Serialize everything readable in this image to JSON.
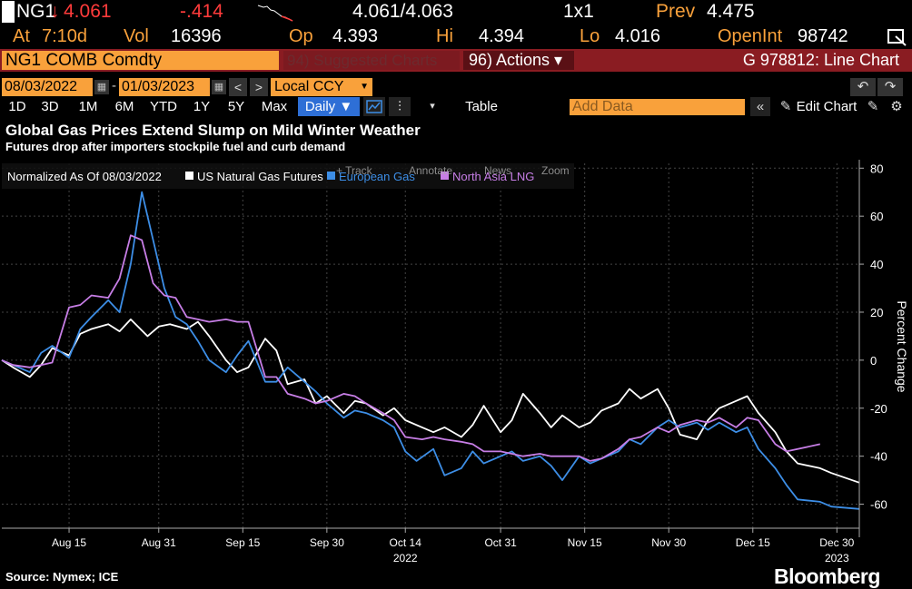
{
  "quote": {
    "ticker": "NG1",
    "last_arrow": "↓",
    "last": "4.061",
    "change": "-.414",
    "bid_ask": "4.061/4.063",
    "size": "1x1",
    "prev_label": "Prev",
    "prev": "4.475",
    "at_label": "At",
    "at_time": "7:10d",
    "vol_label": "Vol",
    "vol": "16396",
    "op_label": "Op",
    "op": "4.393",
    "hi_label": "Hi",
    "hi": "4.394",
    "lo_label": "Lo",
    "lo": "4.016",
    "openint_label": "OpenInt",
    "openint": "98742"
  },
  "command": {
    "security": "NG1 COMB Comdty",
    "suggested": "94) Suggested Charts",
    "actions": "96) Actions ▾",
    "chart_title": "G 978812: Line Chart"
  },
  "dates": {
    "start": "08/03/2022",
    "end": "01/03/2023",
    "currency": "Local CCY"
  },
  "periods": [
    "1D",
    "3D",
    "1M",
    "6M",
    "YTD",
    "1Y",
    "5Y",
    "Max"
  ],
  "frequency": "Daily ▼",
  "toolbar": {
    "table": "Table",
    "add_data_placeholder": "Add Data",
    "edit_chart": "Edit Chart"
  },
  "headline": "Global Gas Prices Extend Slump on Mild Winter Weather",
  "subheadline": "Futures drop after importers stockpile fuel and curb demand",
  "legend": {
    "normalized": "Normalized As Of 08/03/2022",
    "tools": [
      "+ Track",
      "Annotate",
      "News",
      "Zoom"
    ]
  },
  "source": "Source: Nymex; ICE",
  "brand": "Bloomberg",
  "chart_data": {
    "type": "line",
    "ylabel": "Percent Change",
    "ylim": [
      -70,
      82
    ],
    "yticks": [
      80,
      60,
      40,
      20,
      0,
      -20,
      -40,
      -60
    ],
    "x_range": [
      "2022-08-03",
      "2023-01-03"
    ],
    "xticks": [
      {
        "date": "2022-08-15",
        "label": "Aug 15"
      },
      {
        "date": "2022-08-31",
        "label": "Aug 31"
      },
      {
        "date": "2022-09-15",
        "label": "Sep 15"
      },
      {
        "date": "2022-09-30",
        "label": "Sep 30"
      },
      {
        "date": "2022-10-14",
        "label": "Oct 14",
        "sublabel": "2022"
      },
      {
        "date": "2022-10-31",
        "label": "Oct 31"
      },
      {
        "date": "2022-11-15",
        "label": "Nov 15"
      },
      {
        "date": "2022-11-30",
        "label": "Nov 30"
      },
      {
        "date": "2022-12-15",
        "label": "Dec 15"
      },
      {
        "date": "2022-12-30",
        "label": "Dec 30",
        "sublabel": "2023"
      }
    ],
    "grid": true,
    "legend_position": "top-left",
    "series": [
      {
        "name": "US Natural Gas Futures",
        "color": "#ffffff",
        "points": [
          [
            "2022-08-03",
            0
          ],
          [
            "2022-08-05",
            -3
          ],
          [
            "2022-08-08",
            -7
          ],
          [
            "2022-08-10",
            -2
          ],
          [
            "2022-08-12",
            5
          ],
          [
            "2022-08-15",
            2
          ],
          [
            "2022-08-17",
            11
          ],
          [
            "2022-08-19",
            13
          ],
          [
            "2022-08-22",
            15
          ],
          [
            "2022-08-24",
            12
          ],
          [
            "2022-08-26",
            17
          ],
          [
            "2022-08-29",
            10
          ],
          [
            "2022-08-31",
            14
          ],
          [
            "2022-09-02",
            15
          ],
          [
            "2022-09-05",
            13
          ],
          [
            "2022-09-07",
            16
          ],
          [
            "2022-09-09",
            10
          ],
          [
            "2022-09-12",
            0
          ],
          [
            "2022-09-14",
            -5
          ],
          [
            "2022-09-16",
            -3
          ],
          [
            "2022-09-19",
            9
          ],
          [
            "2022-09-21",
            4
          ],
          [
            "2022-09-23",
            -10
          ],
          [
            "2022-09-26",
            -8
          ],
          [
            "2022-09-28",
            -18
          ],
          [
            "2022-09-30",
            -15
          ],
          [
            "2022-10-03",
            -22
          ],
          [
            "2022-10-05",
            -17
          ],
          [
            "2022-10-07",
            -18
          ],
          [
            "2022-10-10",
            -23
          ],
          [
            "2022-10-12",
            -20
          ],
          [
            "2022-10-14",
            -25
          ],
          [
            "2022-10-17",
            -28
          ],
          [
            "2022-10-19",
            -30
          ],
          [
            "2022-10-21",
            -28
          ],
          [
            "2022-10-24",
            -32
          ],
          [
            "2022-10-26",
            -27
          ],
          [
            "2022-10-28",
            -19
          ],
          [
            "2022-10-31",
            -30
          ],
          [
            "2022-11-02",
            -25
          ],
          [
            "2022-11-04",
            -14
          ],
          [
            "2022-11-07",
            -22
          ],
          [
            "2022-11-09",
            -28
          ],
          [
            "2022-11-11",
            -23
          ],
          [
            "2022-11-14",
            -28
          ],
          [
            "2022-11-16",
            -26
          ],
          [
            "2022-11-18",
            -21
          ],
          [
            "2022-11-21",
            -18
          ],
          [
            "2022-11-23",
            -12
          ],
          [
            "2022-11-25",
            -16
          ],
          [
            "2022-11-28",
            -12
          ],
          [
            "2022-11-30",
            -20
          ],
          [
            "2022-12-02",
            -31
          ],
          [
            "2022-12-05",
            -33
          ],
          [
            "2022-12-07",
            -25
          ],
          [
            "2022-12-09",
            -20
          ],
          [
            "2022-12-12",
            -17
          ],
          [
            "2022-12-14",
            -15
          ],
          [
            "2022-12-16",
            -22
          ],
          [
            "2022-12-19",
            -30
          ],
          [
            "2022-12-21",
            -38
          ],
          [
            "2022-12-23",
            -43
          ],
          [
            "2022-12-27",
            -45
          ],
          [
            "2022-12-29",
            -47
          ],
          [
            "2023-01-03",
            -51
          ]
        ]
      },
      {
        "name": "European Gas",
        "color": "#3d8ee6",
        "points": [
          [
            "2022-08-03",
            0
          ],
          [
            "2022-08-05",
            -2
          ],
          [
            "2022-08-08",
            -5
          ],
          [
            "2022-08-10",
            3
          ],
          [
            "2022-08-12",
            6
          ],
          [
            "2022-08-15",
            1
          ],
          [
            "2022-08-17",
            13
          ],
          [
            "2022-08-19",
            18
          ],
          [
            "2022-08-22",
            25
          ],
          [
            "2022-08-24",
            20
          ],
          [
            "2022-08-26",
            40
          ],
          [
            "2022-08-28",
            70
          ],
          [
            "2022-08-30",
            50
          ],
          [
            "2022-09-01",
            30
          ],
          [
            "2022-09-03",
            18
          ],
          [
            "2022-09-05",
            15
          ],
          [
            "2022-09-07",
            8
          ],
          [
            "2022-09-09",
            0
          ],
          [
            "2022-09-12",
            -5
          ],
          [
            "2022-09-14",
            2
          ],
          [
            "2022-09-16",
            8
          ],
          [
            "2022-09-19",
            -9
          ],
          [
            "2022-09-21",
            -9
          ],
          [
            "2022-09-23",
            -3
          ],
          [
            "2022-09-26",
            -9
          ],
          [
            "2022-09-28",
            -13
          ],
          [
            "2022-09-30",
            -18
          ],
          [
            "2022-10-03",
            -24
          ],
          [
            "2022-10-05",
            -21
          ],
          [
            "2022-10-07",
            -22
          ],
          [
            "2022-10-10",
            -25
          ],
          [
            "2022-10-12",
            -28
          ],
          [
            "2022-10-14",
            -38
          ],
          [
            "2022-10-16",
            -42
          ],
          [
            "2022-10-19",
            -37
          ],
          [
            "2022-10-21",
            -48
          ],
          [
            "2022-10-24",
            -45
          ],
          [
            "2022-10-26",
            -38
          ],
          [
            "2022-10-28",
            -43
          ],
          [
            "2022-10-31",
            -40
          ],
          [
            "2022-11-02",
            -38
          ],
          [
            "2022-11-04",
            -42
          ],
          [
            "2022-11-07",
            -40
          ],
          [
            "2022-11-09",
            -44
          ],
          [
            "2022-11-11",
            -50
          ],
          [
            "2022-11-14",
            -40
          ],
          [
            "2022-11-16",
            -43
          ],
          [
            "2022-11-18",
            -41
          ],
          [
            "2022-11-21",
            -38
          ],
          [
            "2022-11-23",
            -33
          ],
          [
            "2022-11-25",
            -35
          ],
          [
            "2022-11-28",
            -28
          ],
          [
            "2022-11-30",
            -25
          ],
          [
            "2022-12-02",
            -28
          ],
          [
            "2022-12-05",
            -26
          ],
          [
            "2022-12-07",
            -29
          ],
          [
            "2022-12-09",
            -26
          ],
          [
            "2022-12-12",
            -30
          ],
          [
            "2022-12-14",
            -28
          ],
          [
            "2022-12-16",
            -37
          ],
          [
            "2022-12-19",
            -45
          ],
          [
            "2022-12-21",
            -52
          ],
          [
            "2022-12-23",
            -58
          ],
          [
            "2022-12-27",
            -59
          ],
          [
            "2022-12-29",
            -61
          ],
          [
            "2023-01-03",
            -62
          ]
        ]
      },
      {
        "name": "North Asia LNG",
        "color": "#c77ee6",
        "points": [
          [
            "2022-08-03",
            0
          ],
          [
            "2022-08-05",
            -2
          ],
          [
            "2022-08-08",
            -3
          ],
          [
            "2022-08-10",
            -2
          ],
          [
            "2022-08-12",
            -1
          ],
          [
            "2022-08-15",
            22
          ],
          [
            "2022-08-17",
            23
          ],
          [
            "2022-08-19",
            27
          ],
          [
            "2022-08-22",
            26
          ],
          [
            "2022-08-24",
            34
          ],
          [
            "2022-08-26",
            52
          ],
          [
            "2022-08-28",
            50
          ],
          [
            "2022-08-30",
            32
          ],
          [
            "2022-09-01",
            27
          ],
          [
            "2022-09-03",
            26
          ],
          [
            "2022-09-05",
            18
          ],
          [
            "2022-09-07",
            17
          ],
          [
            "2022-09-09",
            16
          ],
          [
            "2022-09-12",
            17
          ],
          [
            "2022-09-14",
            16
          ],
          [
            "2022-09-16",
            16
          ],
          [
            "2022-09-19",
            -7
          ],
          [
            "2022-09-21",
            -7
          ],
          [
            "2022-09-23",
            -14
          ],
          [
            "2022-09-26",
            -16
          ],
          [
            "2022-09-28",
            -18
          ],
          [
            "2022-09-30",
            -17
          ],
          [
            "2022-10-03",
            -14
          ],
          [
            "2022-10-05",
            -15
          ],
          [
            "2022-10-07",
            -18
          ],
          [
            "2022-10-10",
            -22
          ],
          [
            "2022-10-12",
            -25
          ],
          [
            "2022-10-14",
            -32
          ],
          [
            "2022-10-17",
            -33
          ],
          [
            "2022-10-19",
            -32
          ],
          [
            "2022-10-21",
            -33
          ],
          [
            "2022-10-24",
            -34
          ],
          [
            "2022-10-26",
            -35
          ],
          [
            "2022-10-28",
            -38
          ],
          [
            "2022-10-31",
            -38
          ],
          [
            "2022-11-02",
            -39
          ],
          [
            "2022-11-04",
            -40
          ],
          [
            "2022-11-07",
            -39
          ],
          [
            "2022-11-09",
            -40
          ],
          [
            "2022-11-11",
            -40
          ],
          [
            "2022-11-14",
            -40
          ],
          [
            "2022-11-16",
            -42
          ],
          [
            "2022-11-18",
            -41
          ],
          [
            "2022-11-21",
            -37
          ],
          [
            "2022-11-23",
            -33
          ],
          [
            "2022-11-25",
            -32
          ],
          [
            "2022-11-28",
            -28
          ],
          [
            "2022-11-30",
            -30
          ],
          [
            "2022-12-02",
            -27
          ],
          [
            "2022-12-05",
            -25
          ],
          [
            "2022-12-07",
            -26
          ],
          [
            "2022-12-09",
            -24
          ],
          [
            "2022-12-12",
            -28
          ],
          [
            "2022-12-14",
            -24
          ],
          [
            "2022-12-16",
            -25
          ],
          [
            "2022-12-19",
            -35
          ],
          [
            "2022-12-21",
            -38
          ],
          [
            "2022-12-23",
            -37
          ],
          [
            "2022-12-27",
            -35
          ]
        ]
      }
    ]
  }
}
